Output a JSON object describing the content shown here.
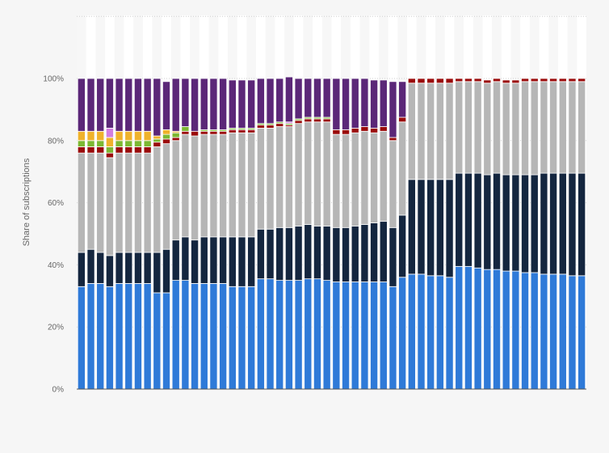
{
  "chart_data": {
    "type": "bar",
    "stacked": true,
    "title": "",
    "xlabel": "",
    "ylabel": "Share of subscriptions",
    "ylim": [
      0,
      100
    ],
    "yticks": [
      "0%",
      "20%",
      "40%",
      "60%",
      "80%",
      "100%"
    ],
    "grid": true,
    "legend": "none",
    "colors": [
      "#2f7ad8",
      "#14263f",
      "#b6b6b6",
      "#9a0b0b",
      "#7cb832",
      "#efb22b",
      "#d27ee0",
      "#5b2778"
    ],
    "series": [
      {
        "name": "",
        "color": "#2f7ad8",
        "values": [
          33,
          34,
          34,
          33,
          34,
          34,
          34,
          34,
          31,
          31,
          35,
          35,
          34,
          34,
          34,
          34,
          33,
          33,
          33,
          35.5,
          35.5,
          35,
          35,
          35,
          35.5,
          35.5,
          35,
          34.5,
          34.5,
          34.5,
          34.5,
          34.5,
          34.5,
          33,
          36,
          37,
          37,
          36.5,
          36.5,
          36,
          39.5,
          39.5,
          39,
          38.5,
          38.5,
          38,
          38,
          37.5,
          37.5,
          37,
          37,
          37,
          36.5,
          36.5
        ]
      },
      {
        "name": "",
        "color": "#14263f",
        "values": [
          11,
          11,
          10,
          10,
          10,
          10,
          10,
          10,
          13,
          14,
          13,
          14,
          14,
          15,
          15,
          15,
          16,
          16,
          16,
          16,
          16,
          17,
          17,
          17.5,
          17.5,
          17,
          17.5,
          17.5,
          17.5,
          18,
          18.5,
          19,
          19.5,
          19,
          20,
          30.5,
          30.5,
          31,
          31,
          31.5,
          30,
          30,
          30.5,
          30.5,
          31,
          31,
          31,
          31.5,
          31.5,
          32.5,
          32.5,
          32.5,
          33,
          33
        ]
      },
      {
        "name": "",
        "color": "#b6b6b6",
        "values": [
          32,
          31,
          32,
          31.5,
          32,
          32,
          32,
          32,
          34,
          34,
          32,
          33,
          33.5,
          33,
          33,
          33,
          33.5,
          33.5,
          33.5,
          32.5,
          32.5,
          32.5,
          32.5,
          33,
          33,
          33.5,
          33.5,
          30,
          30,
          30,
          30,
          29,
          29,
          28,
          30,
          31,
          31,
          31,
          31,
          31,
          29.5,
          29.5,
          29.5,
          29.5,
          29.5,
          29.5,
          29.5,
          30,
          30,
          29.5,
          29.5,
          29.5,
          29.5,
          29.5
        ]
      },
      {
        "name": "",
        "color": "#9a0b0b",
        "values": [
          2,
          2,
          2,
          1.5,
          2,
          2,
          2,
          2,
          1.5,
          1.5,
          1,
          1,
          1.5,
          1,
          1,
          1,
          1,
          1,
          1,
          1,
          1,
          1,
          0.5,
          1,
          1,
          1,
          1,
          1.5,
          1.5,
          1.5,
          1.5,
          1.5,
          1.5,
          1,
          1.5,
          1.5,
          1.5,
          1.5,
          1.5,
          1.5,
          1,
          1,
          1,
          1,
          1,
          1,
          1,
          1,
          1,
          1,
          1,
          1,
          1,
          1
        ]
      },
      {
        "name": "",
        "color": "#7cb832",
        "values": [
          2,
          2,
          2,
          2,
          2,
          2,
          2,
          2,
          1,
          1.5,
          1.5,
          1.5,
          0,
          0.5,
          0.5,
          0.5,
          0.5,
          0.5,
          0.5,
          0.5,
          0.5,
          0.5,
          0.5,
          0.5,
          0.5,
          0.5,
          0.5,
          0,
          0,
          0,
          0,
          0,
          0,
          0,
          0,
          0,
          0,
          0,
          0,
          0,
          0,
          0,
          0,
          0,
          0,
          0,
          0,
          0,
          0,
          0,
          0,
          0,
          0,
          0
        ]
      },
      {
        "name": "",
        "color": "#efb22b",
        "values": [
          3,
          3,
          3,
          3,
          3,
          3,
          3,
          3,
          1,
          1.5,
          0.5,
          0,
          0,
          0,
          0,
          0,
          0,
          0,
          0,
          0,
          0,
          0,
          0,
          0,
          0,
          0,
          0,
          0,
          0,
          0,
          0,
          0,
          0,
          0,
          0,
          0,
          0,
          0,
          0,
          0,
          0,
          0,
          0,
          0,
          0,
          0,
          0,
          0,
          0,
          0,
          0,
          0,
          0,
          0
        ]
      },
      {
        "name": "",
        "color": "#d27ee0",
        "values": [
          0,
          0,
          0,
          3,
          0,
          0,
          0,
          0,
          0,
          0,
          0,
          0,
          0,
          0,
          0,
          0,
          0,
          0,
          0,
          0,
          0,
          0,
          0.5,
          0,
          0,
          0,
          0,
          0,
          0,
          0,
          0,
          0,
          0,
          0,
          0,
          0,
          0,
          0,
          0,
          0,
          0,
          0,
          0,
          0,
          0,
          0,
          0,
          0,
          0,
          0,
          0,
          0,
          0,
          0
        ]
      },
      {
        "name": "",
        "color": "#5b2778",
        "values": [
          17,
          17,
          17,
          16,
          17,
          17,
          17,
          17,
          18.5,
          15.5,
          17,
          15.5,
          17,
          16.5,
          16.5,
          16.5,
          15.5,
          15.5,
          15.5,
          14.5,
          14.5,
          14,
          14.5,
          13,
          12.5,
          12.5,
          12.5,
          16.5,
          16.5,
          16,
          15.5,
          15.5,
          15,
          18,
          11.5,
          0,
          0,
          0,
          0,
          0,
          0,
          0,
          0,
          0,
          0,
          0,
          0,
          0,
          0,
          0,
          0,
          0,
          0,
          0
        ]
      }
    ]
  }
}
